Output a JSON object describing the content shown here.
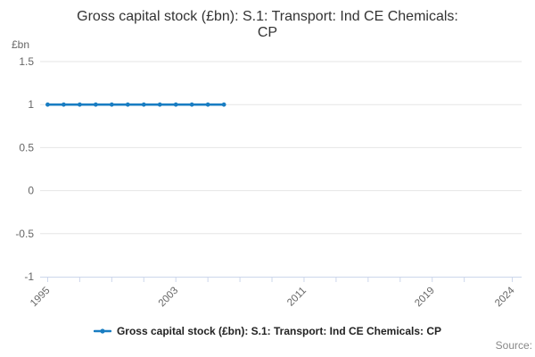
{
  "title_display": "Gross capital stock (£bn): S.1: Transport: Ind CE Chemicals:\nCP",
  "y_axis_unit": "£bn",
  "legend": {
    "label": "Gross capital stock (£bn): S.1: Transport: Ind CE Chemicals: CP"
  },
  "source_label": "Source:",
  "colors": {
    "line": "#197dc2",
    "grid": "#e6e6e6",
    "axis": "#ccd6eb",
    "tick_label": "#666666",
    "title": "#333333",
    "legend_text": "#222222",
    "source": "#888888"
  },
  "chart_data": {
    "type": "line",
    "title": "Gross capital stock (£bn): S.1: Transport: Ind CE Chemicals: CP",
    "ylabel": "£bn",
    "xlabel": "",
    "x": [
      1995,
      1996,
      1997,
      1998,
      1999,
      2000,
      2001,
      2002,
      2003,
      2004,
      2005,
      2006
    ],
    "series": [
      {
        "name": "Gross capital stock (£bn): S.1: Transport: Ind CE Chemicals: CP",
        "values": [
          1,
          1,
          1,
          1,
          1,
          1,
          1,
          1,
          1,
          1,
          1,
          1
        ]
      }
    ],
    "ylim": [
      -1,
      1.5
    ],
    "yticks": [
      1.5,
      1,
      0.5,
      0,
      -0.5,
      -1
    ],
    "xlim": [
      1994.53,
      2024.58
    ],
    "xticks": [
      1995,
      1997,
      1999,
      2001,
      2003,
      2005,
      2007,
      2009,
      2011,
      2013,
      2015,
      2017,
      2019,
      2021,
      2024
    ],
    "xtick_labels": [
      1995,
      2003,
      2011,
      2019,
      2024
    ],
    "grid": true,
    "legend_position": "bottom",
    "marker": "circle"
  }
}
